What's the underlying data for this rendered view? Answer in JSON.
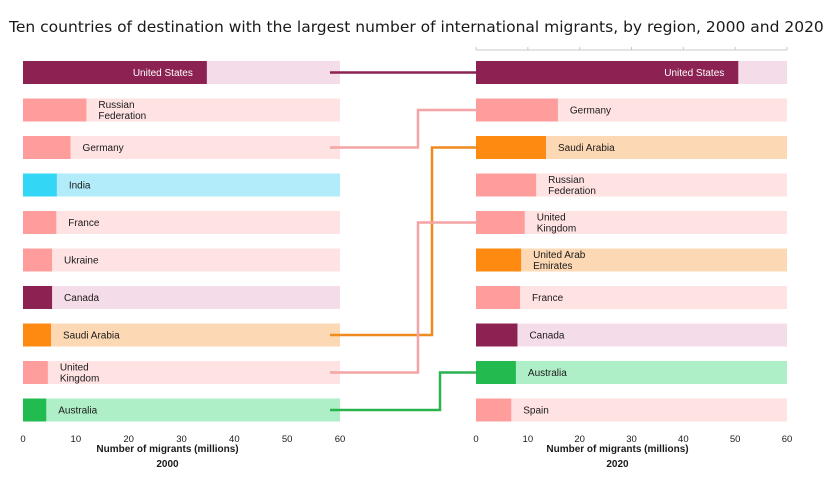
{
  "title": "Ten countries of destination with the largest number of international migrants, by region, 2000 and 2020",
  "region_colors": {
    "north_america": "#8B2252",
    "europe": "#FF9C9C",
    "asia": "#33D6F5",
    "gulf": "#FF8A12",
    "oceania": "#22BB4F"
  },
  "chart_data": [
    {
      "type": "bar",
      "year_label": "2000",
      "xlabel": "Number of migrants (millions)",
      "xlim": [
        0,
        60
      ],
      "ticks": [
        0,
        10,
        20,
        30,
        40,
        50,
        60
      ],
      "tick_labels": [
        "0",
        "10",
        "20",
        "30",
        "40",
        "50",
        "60"
      ],
      "bars": [
        {
          "country": "United States",
          "value": 34.8,
          "region": "north_america",
          "label_lines": [
            "United States"
          ]
        },
        {
          "country": "Russian Federation",
          "value": 12.0,
          "region": "europe",
          "label_lines": [
            "Russian",
            "Federation"
          ]
        },
        {
          "country": "Germany",
          "value": 9.0,
          "region": "europe",
          "label_lines": [
            "Germany"
          ]
        },
        {
          "country": "India",
          "value": 6.4,
          "region": "asia",
          "label_lines": [
            "India"
          ]
        },
        {
          "country": "France",
          "value": 6.3,
          "region": "europe",
          "label_lines": [
            "France"
          ]
        },
        {
          "country": "Ukraine",
          "value": 5.5,
          "region": "europe",
          "label_lines": [
            "Ukraine"
          ]
        },
        {
          "country": "Canada",
          "value": 5.5,
          "region": "north_america",
          "label_lines": [
            "Canada"
          ]
        },
        {
          "country": "Saudi Arabia",
          "value": 5.3,
          "region": "gulf",
          "label_lines": [
            "Saudi Arabia"
          ]
        },
        {
          "country": "United Kingdom",
          "value": 4.7,
          "region": "europe",
          "label_lines": [
            "United",
            "Kingdom"
          ]
        },
        {
          "country": "Australia",
          "value": 4.4,
          "region": "oceania",
          "label_lines": [
            "Australia"
          ]
        }
      ]
    },
    {
      "type": "bar",
      "year_label": "2020",
      "xlabel": "Number of migrants (millions)",
      "xlim": [
        0,
        60
      ],
      "ticks": [
        0,
        10,
        20,
        30,
        40,
        50,
        60
      ],
      "tick_labels": [
        "0",
        "10",
        "20",
        "30",
        "40",
        "50",
        "60"
      ],
      "bars": [
        {
          "country": "United States",
          "value": 50.6,
          "region": "north_america",
          "label_lines": [
            "United States"
          ]
        },
        {
          "country": "Germany",
          "value": 15.8,
          "region": "europe",
          "label_lines": [
            "Germany"
          ]
        },
        {
          "country": "Saudi Arabia",
          "value": 13.5,
          "region": "gulf",
          "label_lines": [
            "Saudi Arabia"
          ]
        },
        {
          "country": "Russian Federation",
          "value": 11.6,
          "region": "europe",
          "label_lines": [
            "Russian",
            "Federation"
          ]
        },
        {
          "country": "United Kingdom",
          "value": 9.4,
          "region": "europe",
          "label_lines": [
            "United",
            "Kingdom"
          ]
        },
        {
          "country": "United Arab Emirates",
          "value": 8.7,
          "region": "gulf",
          "label_lines": [
            "United Arab",
            "Emirates"
          ]
        },
        {
          "country": "France",
          "value": 8.5,
          "region": "europe",
          "label_lines": [
            "France"
          ]
        },
        {
          "country": "Canada",
          "value": 8.0,
          "region": "north_america",
          "label_lines": [
            "Canada"
          ]
        },
        {
          "country": "Australia",
          "value": 7.7,
          "region": "oceania",
          "label_lines": [
            "Australia"
          ]
        },
        {
          "country": "Spain",
          "value": 6.8,
          "region": "europe",
          "label_lines": [
            "Spain"
          ]
        }
      ]
    }
  ],
  "connectors": [
    {
      "country": "United States",
      "region": "north_america"
    },
    {
      "country": "Germany",
      "region": "europe"
    },
    {
      "country": "Saudi Arabia",
      "region": "gulf"
    },
    {
      "country": "United Kingdom",
      "region": "europe"
    },
    {
      "country": "Australia",
      "region": "oceania"
    }
  ]
}
